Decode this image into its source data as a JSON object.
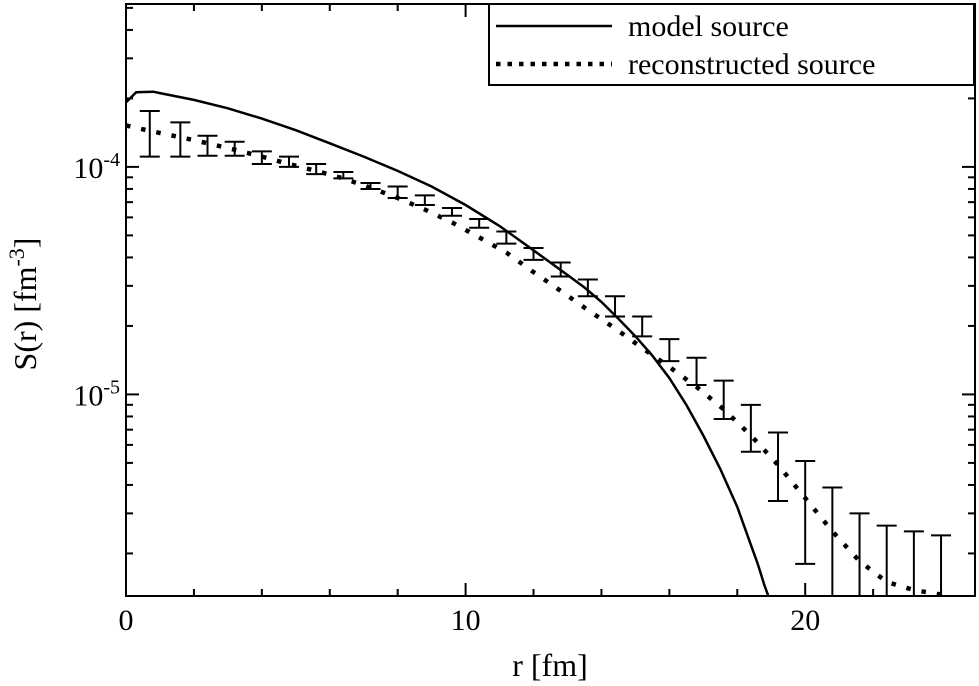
{
  "chart_data": {
    "type": "line",
    "title": "",
    "xlabel": "r [fm]",
    "ylabel": "S(r) [fm-3]",
    "xlim": [
      0,
      25
    ],
    "ylim": [
      1.3e-06,
      0.00052
    ],
    "yscale": "log",
    "grid": false,
    "legend_position": "top-right",
    "x_ticks": [
      {
        "value": 0,
        "label": "0"
      },
      {
        "value": 10,
        "label": "10"
      },
      {
        "value": 20,
        "label": "20"
      }
    ],
    "y_ticks": [
      {
        "value": 0.0001,
        "base": "10",
        "exp": "-4"
      },
      {
        "value": 1e-05,
        "base": "10",
        "exp": "-5"
      }
    ],
    "ylabel_parts": {
      "main": "S(r) [fm",
      "sup": "-3",
      "close": "]"
    },
    "series": [
      {
        "name": "model source",
        "style": "solid",
        "x": [
          0.0,
          0.3,
          0.8,
          1.0,
          2.0,
          3.0,
          4.0,
          5.0,
          6.0,
          7.0,
          8.0,
          9.0,
          10.0,
          11.0,
          12.0,
          13.0,
          13.5,
          14.0,
          14.5,
          15.0,
          15.5,
          16.0,
          16.5,
          17.0,
          17.5,
          18.0,
          18.3,
          18.6,
          18.8,
          19.0
        ],
        "y": [
          0.000192,
          0.000213,
          0.000214,
          0.000211,
          0.000197,
          0.000181,
          0.000163,
          0.000145,
          0.000127,
          0.000111,
          9.6e-05,
          8.2e-05,
          6.8e-05,
          5.5e-05,
          4.3e-05,
          3.35e-05,
          2.95e-05,
          2.55e-05,
          2.15e-05,
          1.8e-05,
          1.48e-05,
          1.18e-05,
          9e-06,
          6.6e-06,
          4.7e-06,
          3.2e-06,
          2.4e-06,
          1.8e-06,
          1.45e-06,
          1.2e-06
        ]
      },
      {
        "name": "reconstructed source",
        "style": "dotted",
        "x": [
          0.0,
          0.8,
          1.6,
          2.4,
          3.2,
          4.0,
          4.8,
          5.6,
          6.4,
          7.2,
          8.0,
          8.8,
          9.6,
          10.4,
          11.2,
          12.0,
          12.8,
          13.6,
          14.4,
          15.2,
          16.0,
          16.8,
          17.6,
          18.4,
          19.2,
          20.0,
          20.8,
          21.6,
          22.4,
          23.2,
          24.0
        ],
        "y": [
          0.000152,
          0.000143,
          0.000135,
          0.000127,
          0.000119,
          0.000111,
          0.000103,
          9.6e-05,
          8.9e-05,
          8.1e-05,
          7.3e-05,
          6.5e-05,
          5.7e-05,
          4.9e-05,
          4.2e-05,
          3.45e-05,
          2.85e-05,
          2.35e-05,
          1.95e-05,
          1.6e-05,
          1.32e-05,
          1.08e-05,
          8.6e-06,
          6.6e-06,
          4.9e-06,
          3.5e-06,
          2.5e-06,
          1.85e-06,
          1.5e-06,
          1.38e-06,
          1.32e-06
        ]
      }
    ],
    "error_bars": {
      "series": "reconstructed source",
      "points": [
        {
          "x": 0.7,
          "low": 0.000111,
          "high": 0.000176
        },
        {
          "x": 1.6,
          "low": 0.000111,
          "high": 0.000157
        },
        {
          "x": 2.4,
          "low": 0.000112,
          "high": 0.000137
        },
        {
          "x": 3.2,
          "low": 0.000112,
          "high": 0.000129
        },
        {
          "x": 4.0,
          "low": 0.000103,
          "high": 0.000117
        },
        {
          "x": 4.8,
          "low": 0.0001,
          "high": 0.000111
        },
        {
          "x": 5.6,
          "low": 9.3e-05,
          "high": 0.000103
        },
        {
          "x": 6.4,
          "low": 8.9e-05,
          "high": 9.5e-05
        },
        {
          "x": 7.2,
          "low": 8e-05,
          "high": 8.5e-05
        },
        {
          "x": 8.0,
          "low": 7.3e-05,
          "high": 8.2e-05
        },
        {
          "x": 8.8,
          "low": 6.8e-05,
          "high": 7.5e-05
        },
        {
          "x": 9.6,
          "low": 6.1e-05,
          "high": 6.6e-05
        },
        {
          "x": 10.4,
          "low": 5.4e-05,
          "high": 5.9e-05
        },
        {
          "x": 11.2,
          "low": 4.6e-05,
          "high": 5.2e-05
        },
        {
          "x": 12.0,
          "low": 3.9e-05,
          "high": 4.4e-05
        },
        {
          "x": 12.8,
          "low": 3.3e-05,
          "high": 3.8e-05
        },
        {
          "x": 13.6,
          "low": 2.7e-05,
          "high": 3.2e-05
        },
        {
          "x": 14.4,
          "low": 2.2e-05,
          "high": 2.7e-05
        },
        {
          "x": 15.2,
          "low": 1.8e-05,
          "high": 2.2e-05
        },
        {
          "x": 16.0,
          "low": 1.4e-05,
          "high": 1.75e-05
        },
        {
          "x": 16.8,
          "low": 1.1e-05,
          "high": 1.45e-05
        },
        {
          "x": 17.6,
          "low": 7.8e-06,
          "high": 1.15e-05
        },
        {
          "x": 18.4,
          "low": 5.6e-06,
          "high": 9e-06
        },
        {
          "x": 19.2,
          "low": 3.4e-06,
          "high": 6.8e-06
        },
        {
          "x": 20.0,
          "low": 1.8e-06,
          "high": 5.1e-06
        },
        {
          "x": 20.8,
          "low": 1.3e-06,
          "high": 3.9e-06
        },
        {
          "x": 21.6,
          "low": 1.3e-06,
          "high": 3e-06
        },
        {
          "x": 22.4,
          "low": 1.3e-06,
          "high": 2.65e-06
        },
        {
          "x": 23.2,
          "low": 1.3e-06,
          "high": 2.5e-06
        },
        {
          "x": 24.0,
          "low": 1.3e-06,
          "high": 2.4e-06
        }
      ]
    }
  }
}
